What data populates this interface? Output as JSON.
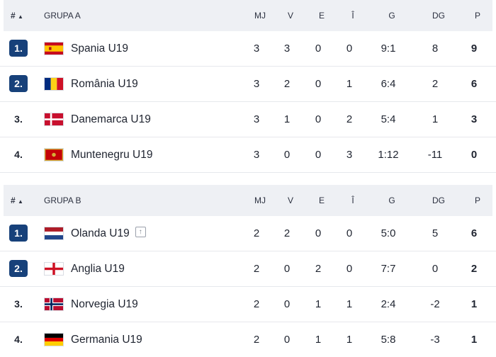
{
  "header": {
    "hash": "#",
    "sort_icon": "sort-up-icon",
    "cols": [
      "MJ",
      "V",
      "E",
      "Î",
      "G",
      "DG",
      "P"
    ]
  },
  "groups": [
    {
      "title": "GRUPA A",
      "rows": [
        {
          "rank": "1.",
          "qualified": true,
          "team": "Spania U19",
          "flag": "spain",
          "mj": "3",
          "v": "3",
          "e": "0",
          "i": "0",
          "g": "9:1",
          "dg": "8",
          "p": "9"
        },
        {
          "rank": "2.",
          "qualified": true,
          "team": "România U19",
          "flag": "romania",
          "mj": "3",
          "v": "2",
          "e": "0",
          "i": "1",
          "g": "6:4",
          "dg": "2",
          "p": "6"
        },
        {
          "rank": "3.",
          "qualified": false,
          "team": "Danemarca U19",
          "flag": "denmark",
          "mj": "3",
          "v": "1",
          "e": "0",
          "i": "2",
          "g": "5:4",
          "dg": "1",
          "p": "3"
        },
        {
          "rank": "4.",
          "qualified": false,
          "team": "Muntenegru U19",
          "flag": "montenegro",
          "mj": "3",
          "v": "0",
          "e": "0",
          "i": "3",
          "g": "1:12",
          "dg": "-11",
          "p": "0"
        }
      ]
    },
    {
      "title": "GRUPA B",
      "rows": [
        {
          "rank": "1.",
          "qualified": true,
          "team": "Olanda U19",
          "flag": "netherlands",
          "badge_icon": "arrow-up-icon",
          "mj": "2",
          "v": "2",
          "e": "0",
          "i": "0",
          "g": "5:0",
          "dg": "5",
          "p": "6"
        },
        {
          "rank": "2.",
          "qualified": true,
          "team": "Anglia U19",
          "flag": "england",
          "mj": "2",
          "v": "0",
          "e": "2",
          "i": "0",
          "g": "7:7",
          "dg": "0",
          "p": "2"
        },
        {
          "rank": "3.",
          "qualified": false,
          "team": "Norvegia U19",
          "flag": "norway",
          "mj": "2",
          "v": "0",
          "e": "1",
          "i": "1",
          "g": "2:4",
          "dg": "-2",
          "p": "1"
        },
        {
          "rank": "4.",
          "qualified": false,
          "team": "Germania U19",
          "flag": "germany",
          "mj": "2",
          "v": "0",
          "e": "1",
          "i": "1",
          "g": "5:8",
          "dg": "-3",
          "p": "1"
        }
      ]
    }
  ],
  "colors": {
    "qualified_rank_bg": "#17417a",
    "header_bg": "#eef0f4"
  }
}
